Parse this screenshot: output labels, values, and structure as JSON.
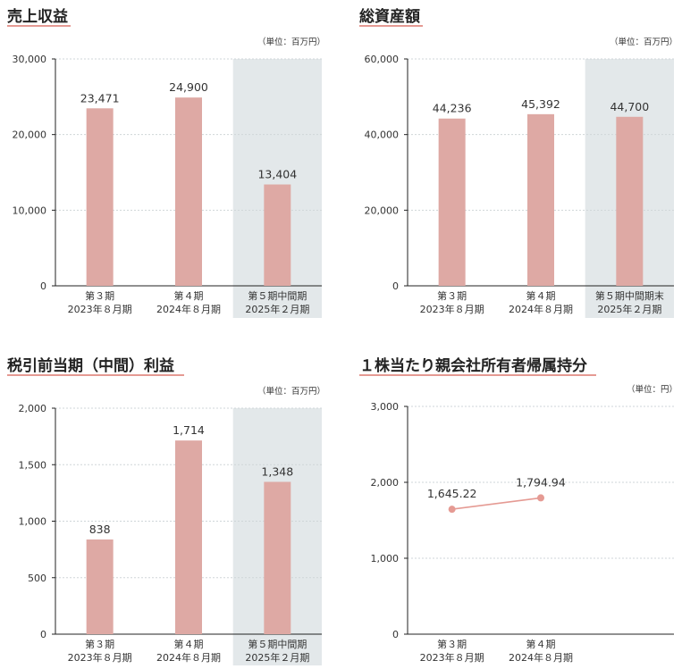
{
  "colors": {
    "bar": "#dea9a4",
    "shade": "#e3e8ea",
    "axis": "#222222",
    "grid": "#cfd6d8",
    "underline": "#e59a93",
    "line": "#e59a93"
  },
  "chart_data": [
    {
      "type": "bar",
      "title": "売上収益",
      "unit": "（単位：百万円）",
      "ylim": [
        0,
        30000
      ],
      "yticks": [
        "0",
        "10,000",
        "20,000",
        "30,000"
      ],
      "categories": [
        [
          "第３期",
          "2023年８月期"
        ],
        [
          "第４期",
          "2024年８月期"
        ],
        [
          "第５期中間期",
          "2025年２月期"
        ]
      ],
      "values": [
        23471,
        24900,
        13404
      ],
      "labels": [
        "23,471",
        "24,900",
        "13,404"
      ],
      "highlight_index": 2
    },
    {
      "type": "bar",
      "title": "総資産額",
      "unit": "（単位：百万円）",
      "ylim": [
        0,
        60000
      ],
      "yticks": [
        "0",
        "20,000",
        "40,000",
        "60,000"
      ],
      "categories": [
        [
          "第３期",
          "2023年８月期"
        ],
        [
          "第４期",
          "2024年８月期"
        ],
        [
          "第５期中間期末",
          "2025年２月期"
        ]
      ],
      "values": [
        44236,
        45392,
        44700
      ],
      "labels": [
        "44,236",
        "45,392",
        "44,700"
      ],
      "highlight_index": 2
    },
    {
      "type": "bar",
      "title": "税引前当期（中間）利益",
      "unit": "（単位：百万円）",
      "ylim": [
        0,
        2000
      ],
      "yticks": [
        "0",
        "500",
        "1,000",
        "1,500",
        "2,000"
      ],
      "categories": [
        [
          "第３期",
          "2023年８月期"
        ],
        [
          "第４期",
          "2024年８月期"
        ],
        [
          "第５期中間期",
          "2025年２月期"
        ]
      ],
      "values": [
        838,
        1714,
        1348
      ],
      "labels": [
        "838",
        "1,714",
        "1,348"
      ],
      "highlight_index": 2
    },
    {
      "type": "line",
      "title": "１株当たり親会社所有者帰属持分",
      "unit": "（単位：円）",
      "ylim": [
        0,
        3000
      ],
      "yticks": [
        "0",
        "1,000",
        "2,000",
        "3,000"
      ],
      "categories": [
        [
          "第３期",
          "2023年８月期"
        ],
        [
          "第４期",
          "2024年８月期"
        ]
      ],
      "values": [
        1645.22,
        1794.94
      ],
      "labels": [
        "1,645.22",
        "1,794.94"
      ],
      "slots": 3
    }
  ]
}
